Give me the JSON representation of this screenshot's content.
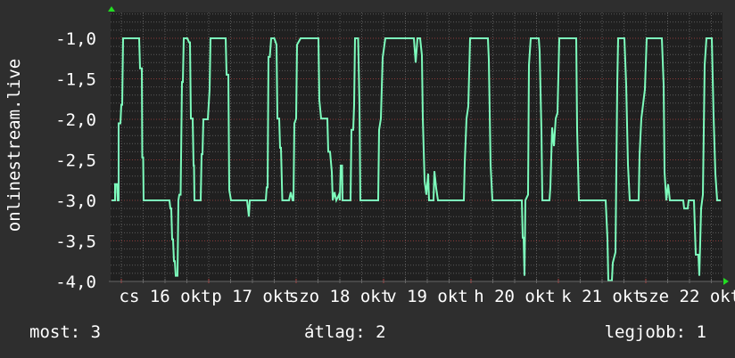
{
  "chart_data": {
    "type": "line",
    "ylabel": "onlinestream.live",
    "xlabel": "",
    "ylim": [
      -4.0,
      -0.68
    ],
    "xlim": [
      15.888,
      22.88
    ],
    "grid": true,
    "yticks": [
      "-1,0",
      "-1,5",
      "-2,0",
      "-2,5",
      "-3,0",
      "-3,5",
      "-4,0"
    ],
    "ytick_values": [
      -1.0,
      -1.5,
      -2.0,
      -2.5,
      -3.0,
      -3.5,
      -4.0
    ],
    "xticks": [
      "cs 16 okt",
      "p 17 okt",
      "szo 18 okt",
      "v 19 okt",
      "h 20 okt",
      "k 21 okt",
      "sze 22 okt"
    ],
    "xtick_values": [
      16.5,
      17.5,
      18.5,
      19.5,
      20.5,
      21.5,
      22.5
    ],
    "colors": {
      "line": "#7dfcbc",
      "background": "#2e2e2e",
      "plot": "#202020",
      "grid": "#5a5a5a",
      "major_grid": "#8a3a3a",
      "arrow": "#22dd22"
    },
    "series": [
      {
        "x": [
          15.888,
          15.929,
          15.929,
          15.949,
          15.959,
          15.969,
          15.969,
          15.99,
          16.0,
          16.01,
          16.02,
          16.204,
          16.214,
          16.235,
          16.24,
          16.25,
          16.255,
          16.551,
          16.561,
          16.571,
          16.582,
          16.592,
          16.602,
          16.612,
          16.622,
          16.643,
          16.653,
          16.663,
          16.679,
          16.694,
          16.704,
          16.714,
          16.755,
          16.776,
          16.786,
          16.796,
          16.816,
          16.827,
          16.832,
          16.837,
          16.908,
          16.918,
          16.929,
          16.939,
          16.99,
          17.01,
          17.02,
          17.194,
          17.204,
          17.224,
          17.235,
          17.255,
          17.439,
          17.459,
          17.469,
          17.653,
          17.663,
          17.673,
          17.684,
          17.699,
          17.714,
          17.75,
          17.776,
          17.786,
          17.806,
          17.816,
          17.827,
          17.842,
          17.918,
          17.939,
          17.959,
          17.969,
          17.98,
          18.0,
          18.01,
          18.051,
          18.255,
          18.265,
          18.286,
          18.357,
          18.367,
          18.388,
          18.408,
          18.418,
          18.439,
          18.459,
          18.49,
          18.5,
          18.51,
          18.526,
          18.531,
          18.622,
          18.633,
          18.653,
          18.663,
          18.673,
          18.709,
          18.724,
          18.735,
          18.939,
          18.949,
          18.969,
          18.99,
          19.02,
          19.347,
          19.367,
          19.388,
          19.418,
          19.439,
          19.449,
          19.469,
          19.49,
          19.51,
          19.52,
          19.571,
          19.582,
          19.602,
          19.622,
          19.918,
          19.929,
          19.949,
          19.969,
          19.99,
          20.194,
          20.204,
          20.224,
          20.245,
          20.582,
          20.592,
          20.602,
          20.612,
          20.622,
          20.653,
          20.663,
          20.684,
          20.776,
          20.786,
          20.806,
          20.816,
          20.898,
          20.908,
          20.929,
          20.949,
          20.969,
          20.99,
          21.01,
          21.204,
          21.214,
          21.235,
          21.541,
          21.561,
          21.571,
          21.612,
          21.622,
          21.653,
          21.673,
          21.684,
          21.755,
          21.776,
          21.796,
          21.816,
          21.918,
          21.929,
          21.949,
          21.99,
          22.01,
          22.184,
          22.204,
          22.214,
          22.235,
          22.255,
          22.276,
          22.429,
          22.439,
          22.48,
          22.49,
          22.551,
          22.571,
          22.602,
          22.612,
          22.633,
          22.653,
          22.673,
          22.694,
          22.755,
          22.776,
          22.796,
          22.816,
          22.857
        ],
        "y": [
          -3.0,
          -3.0,
          -2.8,
          -2.8,
          -3.0,
          -3.0,
          -2.05,
          -2.05,
          -1.82,
          -1.82,
          -1.0,
          -1.0,
          -1.37,
          -1.37,
          -2.47,
          -2.47,
          -3.0,
          -3.0,
          -3.1,
          -3.1,
          -3.48,
          -3.48,
          -3.75,
          -3.75,
          -3.93,
          -3.93,
          -3.0,
          -2.93,
          -2.93,
          -1.54,
          -1.54,
          -1.0,
          -1.0,
          -1.05,
          -1.05,
          -1.99,
          -1.99,
          -2.57,
          -2.57,
          -3.0,
          -3.0,
          -2.43,
          -2.43,
          -2.0,
          -2.0,
          -1.63,
          -1.0,
          -1.0,
          -1.45,
          -1.45,
          -2.87,
          -3.0,
          -3.0,
          -3.2,
          -3.0,
          -3.0,
          -2.84,
          -2.84,
          -1.23,
          -1.23,
          -1.0,
          -1.0,
          -1.08,
          -1.99,
          -1.99,
          -2.35,
          -2.35,
          -3.0,
          -3.0,
          -2.9,
          -3.0,
          -3.0,
          -2.05,
          -1.99,
          -1.08,
          -1.0,
          -1.0,
          -1.76,
          -1.99,
          -1.99,
          -2.4,
          -2.4,
          -2.65,
          -3.0,
          -2.9,
          -3.0,
          -2.93,
          -3.0,
          -2.57,
          -2.57,
          -3.0,
          -3.0,
          -2.13,
          -2.13,
          -1.82,
          -1.0,
          -1.0,
          -1.82,
          -3.0,
          -3.0,
          -2.13,
          -1.99,
          -1.24,
          -1.0,
          -1.0,
          -1.3,
          -1.0,
          -1.0,
          -1.21,
          -1.99,
          -2.76,
          -2.93,
          -2.67,
          -3.0,
          -3.0,
          -2.64,
          -2.85,
          -3.0,
          -3.0,
          -2.54,
          -1.99,
          -1.84,
          -1.0,
          -1.0,
          -1.26,
          -2.56,
          -3.0,
          -3.0,
          -3.46,
          -3.46,
          -3.93,
          -3.0,
          -2.93,
          -1.33,
          -1.0,
          -1.0,
          -1.16,
          -2.15,
          -3.0,
          -3.0,
          -2.84,
          -2.1,
          -2.33,
          -1.99,
          -1.92,
          -1.0,
          -1.0,
          -2.12,
          -3.0,
          -3.0,
          -3.47,
          -3.99,
          -3.99,
          -3.77,
          -3.64,
          -1.57,
          -1.0,
          -1.0,
          -1.57,
          -2.56,
          -3.0,
          -3.0,
          -2.44,
          -1.99,
          -1.63,
          -1.0,
          -1.0,
          -1.57,
          -2.65,
          -3.0,
          -2.8,
          -3.0,
          -3.0,
          -3.1,
          -3.1,
          -3.0,
          -3.0,
          -3.67,
          -3.67,
          -3.93,
          -3.1,
          -2.93,
          -1.33,
          -1.0,
          -1.0,
          -1.96,
          -2.67,
          -3.0,
          -3.0
        ]
      }
    ]
  },
  "footer": {
    "current": "most: 3",
    "average": "átlag: 2",
    "best": "legjobb: 1"
  }
}
